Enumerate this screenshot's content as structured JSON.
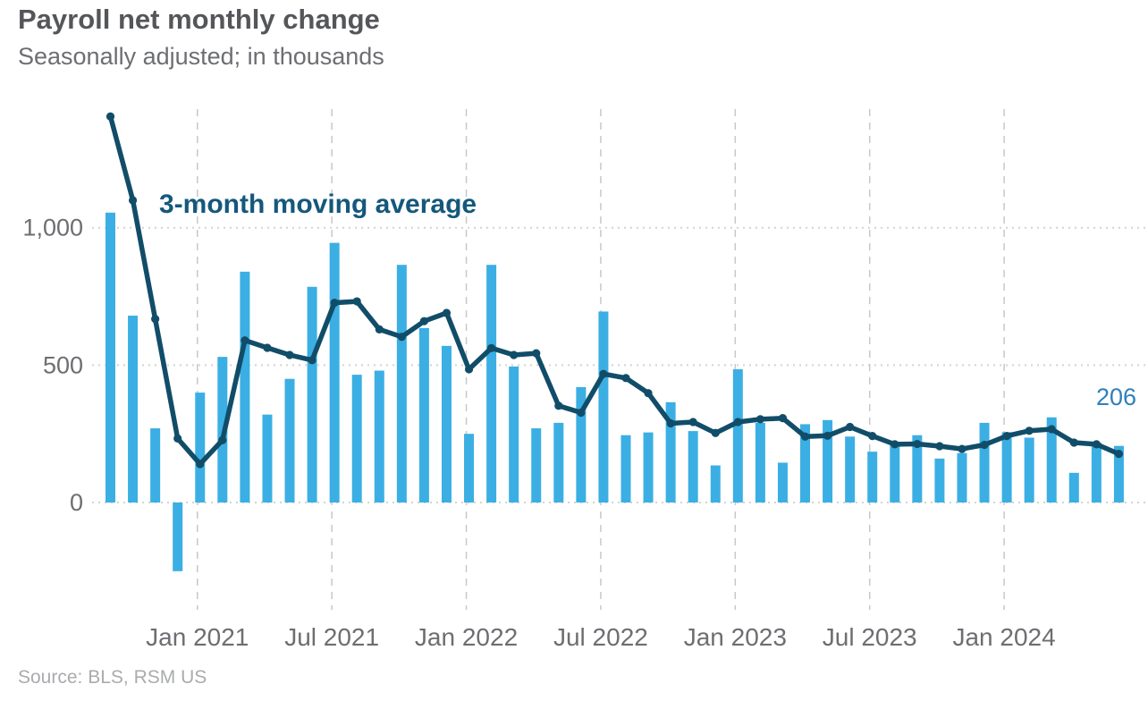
{
  "header": {
    "title": "Payroll net monthly change",
    "subtitle": "Seasonally adjusted; in thousands"
  },
  "annotations": {
    "moving_average_label": "3-month moving average",
    "last_bar_label": "206"
  },
  "source": {
    "text": "Source: BLS, RSM US"
  },
  "chart_data": {
    "type": "bar",
    "title": "Payroll net monthly change",
    "subtitle": "Seasonally adjusted; in thousands",
    "x": [
      "Sep 2020",
      "Oct 2020",
      "Nov 2020",
      "Dec 2020",
      "Jan 2021",
      "Feb 2021",
      "Mar 2021",
      "Apr 2021",
      "May 2021",
      "Jun 2021",
      "Jul 2021",
      "Aug 2021",
      "Sep 2021",
      "Oct 2021",
      "Nov 2021",
      "Dec 2021",
      "Jan 2022",
      "Feb 2022",
      "Mar 2022",
      "Apr 2022",
      "May 2022",
      "Jun 2022",
      "Jul 2022",
      "Aug 2022",
      "Sep 2022",
      "Oct 2022",
      "Nov 2022",
      "Dec 2022",
      "Jan 2023",
      "Feb 2023",
      "Mar 2023",
      "Apr 2023",
      "May 2023",
      "Jun 2023",
      "Jul 2023",
      "Aug 2023",
      "Sep 2023",
      "Oct 2023",
      "Nov 2023",
      "Dec 2023",
      "Jan 2024",
      "Feb 2024",
      "Mar 2024",
      "Apr 2024",
      "May 2024",
      "Jun 2024"
    ],
    "series": [
      {
        "name": "Payroll net monthly change",
        "type": "bar",
        "color": "#3bafe3",
        "values": [
          1055,
          680,
          270,
          -250,
          400,
          530,
          840,
          320,
          450,
          785,
          945,
          465,
          480,
          865,
          635,
          570,
          250,
          865,
          495,
          270,
          290,
          420,
          695,
          245,
          255,
          365,
          260,
          135,
          485,
          290,
          145,
          285,
          300,
          240,
          185,
          210,
          245,
          160,
          180,
          290,
          256,
          236,
          310,
          108,
          218,
          206
        ]
      },
      {
        "name": "3-month moving average",
        "type": "line",
        "color": "#114d68",
        "values": [
          1405,
          1100,
          668,
          233,
          140,
          227,
          590,
          563,
          537,
          518,
          727,
          732,
          630,
          603,
          660,
          690,
          485,
          562,
          537,
          543,
          352,
          327,
          468,
          453,
          398,
          288,
          293,
          253,
          293,
          303,
          307,
          240,
          243,
          275,
          242,
          212,
          213,
          205,
          195,
          210,
          242,
          261,
          267,
          218,
          212,
          177
        ]
      }
    ],
    "ylim": [
      -300,
      1450
    ],
    "yticks": [
      0,
      500,
      1000
    ],
    "ytick_labels": [
      "0",
      "500",
      "1,000"
    ],
    "xtick_indices": [
      4,
      10,
      16,
      22,
      28,
      34,
      40
    ],
    "xtick_labels": [
      "Jan 2021",
      "Jul 2021",
      "Jan 2022",
      "Jul 2022",
      "Jan 2023",
      "Jul 2023",
      "Jan 2024"
    ],
    "grid": {
      "horizontal": "dotted",
      "vertical": "dashed",
      "legend": "none"
    },
    "colors": {
      "bar": "#3bafe3",
      "line": "#114d68",
      "annotation": "#14587c",
      "last_label": "#2e7fbc",
      "title": "#55565a",
      "axis_text": "#6d6e71",
      "source_text": "#a9abae",
      "grid_dotted": "#d2d3d5",
      "grid_dashed": "#c7c8ca"
    }
  }
}
